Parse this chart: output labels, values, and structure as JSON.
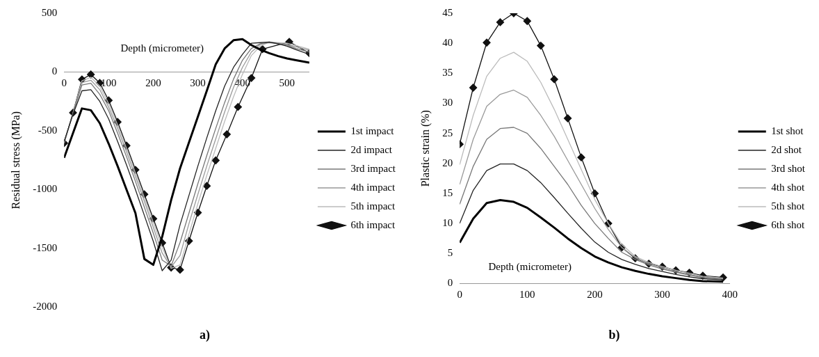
{
  "chart_data": [
    {
      "type": "line",
      "title": "a)",
      "xlabel": "Depth (micrometer)",
      "ylabel": "Residual stress (MPa)",
      "xlim": [
        0,
        550
      ],
      "xticks": [
        0,
        100,
        200,
        300,
        400,
        500
      ],
      "ylim": [
        -2000,
        500
      ],
      "yticks": [
        -2000,
        -1500,
        -1000,
        -500,
        0,
        500
      ],
      "grid": false,
      "legend": "right",
      "x": [
        0,
        20,
        40,
        60,
        80,
        100,
        120,
        140,
        160,
        180,
        200,
        220,
        240,
        260,
        280,
        300,
        320,
        340,
        360,
        380,
        400,
        420,
        440,
        460,
        480,
        500,
        520,
        550
      ],
      "series": [
        {
          "name": "1st impact",
          "color": "#000000",
          "marker": "none",
          "values": [
            -730,
            -520,
            -310,
            -325,
            -435,
            -610,
            -800,
            -1000,
            -1200,
            -1590,
            -1640,
            -1400,
            -1090,
            -820,
            -600,
            -380,
            -160,
            65,
            200,
            270,
            280,
            229,
            190,
            160,
            135,
            115,
            100,
            80
          ]
        },
        {
          "name": "2d impact",
          "color": "#222222",
          "marker": "none",
          "values": [
            -590,
            -360,
            -160,
            -150,
            -250,
            -400,
            -590,
            -790,
            -1000,
            -1220,
            -1440,
            -1690,
            -1600,
            -1300,
            -1050,
            -800,
            -560,
            -330,
            -120,
            40,
            150,
            245,
            250,
            255,
            240,
            220,
            190,
            150
          ]
        },
        {
          "name": "3rd impact",
          "color": "#777777",
          "marker": "none",
          "values": [
            -600,
            -350,
            -110,
            -95,
            -190,
            -330,
            -520,
            -720,
            -930,
            -1150,
            -1370,
            -1600,
            -1650,
            -1450,
            -1200,
            -950,
            -710,
            -480,
            -260,
            -60,
            100,
            200,
            240,
            250,
            240,
            230,
            200,
            170
          ]
        },
        {
          "name": "4th impact",
          "color": "#999999",
          "marker": "none",
          "values": [
            -605,
            -350,
            -90,
            -70,
            -150,
            -300,
            -480,
            -680,
            -890,
            -1100,
            -1320,
            -1540,
            -1660,
            -1560,
            -1290,
            -1040,
            -800,
            -570,
            -340,
            -130,
            40,
            170,
            235,
            255,
            245,
            235,
            215,
            185
          ]
        },
        {
          "name": "5th impact",
          "color": "#bbbbbb",
          "marker": "none",
          "values": [
            -605,
            -348,
            -75,
            -45,
            -120,
            -270,
            -450,
            -650,
            -860,
            -1070,
            -1280,
            -1490,
            -1670,
            -1640,
            -1380,
            -1120,
            -880,
            -650,
            -420,
            -210,
            -20,
            140,
            220,
            255,
            250,
            245,
            225,
            195
          ]
        },
        {
          "name": "6th impact",
          "color": "#111111",
          "marker": "diamond",
          "x": [
            0,
            20,
            40,
            60,
            80,
            100,
            120,
            140,
            160,
            180,
            200,
            220,
            240,
            260,
            280,
            300,
            320,
            340,
            365,
            390,
            420,
            445,
            505,
            550
          ],
          "values": [
            -605,
            -346,
            -63,
            -21,
            -93,
            -241,
            -425,
            -626,
            -832,
            -1040,
            -1248,
            -1453,
            -1663,
            -1682,
            -1437,
            -1196,
            -969,
            -752,
            -530,
            -297,
            -51,
            194,
            257,
            160
          ]
        }
      ]
    },
    {
      "type": "line",
      "title": "b)",
      "xlabel": "Depth (micrometer)",
      "ylabel": "Plastic strain (%)",
      "xlim": [
        0,
        400
      ],
      "xticks": [
        0,
        100,
        200,
        300,
        400
      ],
      "ylim": [
        0,
        45
      ],
      "yticks": [
        0,
        5,
        10,
        15,
        20,
        25,
        30,
        35,
        40,
        45
      ],
      "grid": false,
      "legend": "right",
      "x": [
        0,
        20,
        40,
        60,
        80,
        100,
        120,
        140,
        160,
        180,
        200,
        220,
        240,
        260,
        280,
        300,
        320,
        340,
        360,
        390
      ],
      "series": [
        {
          "name": "1st shot",
          "color": "#000000",
          "marker": "none",
          "values": [
            6.8,
            10.8,
            13.4,
            13.9,
            13.6,
            12.6,
            11,
            9.3,
            7.5,
            5.9,
            4.5,
            3.5,
            2.7,
            2.1,
            1.6,
            1.2,
            0.9,
            0.6,
            0.4,
            0.3
          ]
        },
        {
          "name": "2d shot",
          "color": "#222222",
          "marker": "none",
          "values": [
            10,
            15.5,
            18.8,
            19.9,
            19.9,
            18.8,
            16.8,
            14.3,
            11.7,
            9.2,
            6.9,
            5.2,
            4,
            3.2,
            2.5,
            2,
            1.5,
            1.1,
            0.8,
            0.6
          ]
        },
        {
          "name": "3rd shot",
          "color": "#777777",
          "marker": "none",
          "values": [
            13.2,
            19.5,
            24,
            25.8,
            26,
            25,
            22.5,
            19.5,
            16.5,
            13,
            10,
            7.5,
            5.2,
            4,
            3.1,
            2.4,
            1.9,
            1.4,
            1,
            0.7
          ]
        },
        {
          "name": "4th shot",
          "color": "#999999",
          "marker": "none",
          "values": [
            16.5,
            24,
            29.5,
            31.5,
            32.2,
            31,
            28,
            24.5,
            20.5,
            16.5,
            12.5,
            9,
            6,
            4.3,
            3.3,
            2.6,
            2,
            1.5,
            1.1,
            0.8
          ]
        },
        {
          "name": "5th shot",
          "color": "#bbbbbb",
          "marker": "none",
          "values": [
            19.8,
            28,
            34.5,
            37.5,
            38.5,
            37,
            33.5,
            29,
            24,
            19,
            14,
            10,
            6.5,
            4.5,
            3.5,
            2.8,
            2.2,
            1.7,
            1.2,
            0.9
          ]
        },
        {
          "name": "6th shot",
          "color": "#111111",
          "marker": "diamond",
          "values": [
            23.2,
            32.6,
            40.1,
            43.5,
            45,
            43.7,
            39.6,
            34,
            27.5,
            21,
            15,
            10,
            6,
            4.2,
            3.3,
            2.8,
            2.2,
            1.8,
            1.3,
            1
          ]
        }
      ]
    }
  ]
}
